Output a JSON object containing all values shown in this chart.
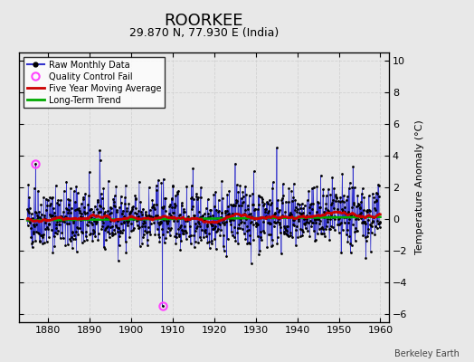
{
  "title": "ROORKEE",
  "subtitle": "29.870 N, 77.930 E (India)",
  "ylabel": "Temperature Anomaly (°C)",
  "credit": "Berkeley Earth",
  "xlim": [
    1873,
    1962
  ],
  "ylim": [
    -6.5,
    10.5
  ],
  "yticks": [
    -6,
    -4,
    -2,
    0,
    2,
    4,
    6,
    8,
    10
  ],
  "xticks": [
    1880,
    1890,
    1900,
    1910,
    1920,
    1930,
    1940,
    1950,
    1960
  ],
  "year_start": 1875,
  "n_months": 1020,
  "background_color": "#e8e8e8",
  "plot_bg_color": "#e8e8e8",
  "raw_line_color": "#3333cc",
  "raw_dot_color": "#000000",
  "moving_avg_color": "#cc0000",
  "trend_color": "#00aa00",
  "qc_fail_color": "#ff44ff",
  "title_fontsize": 13,
  "subtitle_fontsize": 9,
  "seed": 42,
  "qc_fail_indices": [
    24,
    390
  ],
  "qc_fail_values": [
    3.5,
    -5.5
  ],
  "spike_indices": [
    210,
    600,
    720,
    940
  ],
  "spike_values": [
    3.7,
    3.5,
    4.5,
    3.3
  ]
}
